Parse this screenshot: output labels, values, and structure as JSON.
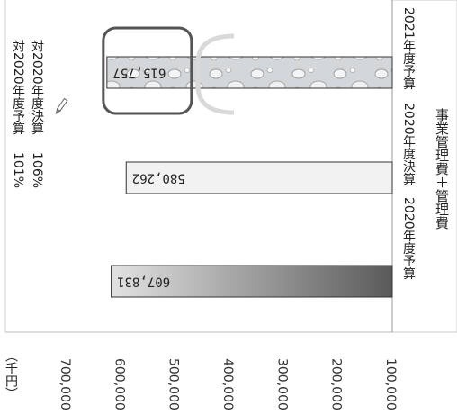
{
  "chart_data": {
    "type": "bar",
    "orientation": "horizontal",
    "unit_label": "（千円）",
    "categories": [
      "2020年度予算",
      "2020年度決算",
      "2021年度予算"
    ],
    "values": [
      607831,
      580262,
      615757
    ],
    "value_labels": [
      "607,831",
      "580,262",
      "615,757"
    ],
    "value_axis": {
      "min": 100000,
      "max": 700000,
      "ticks": [
        "100,000",
        "200,000",
        "300,000",
        "400,000",
        "500,000",
        "600,000",
        "700,000"
      ]
    },
    "category_axis_title": "事業管理費＋管理費",
    "annotation": {
      "lines": [
        {
          "label": "対2020年度予算",
          "value": "101%"
        },
        {
          "label": "対2020年度決算",
          "value": "106%"
        }
      ],
      "icon": "pencil-icon"
    },
    "highlight_category": "2021年度予算",
    "colors": {
      "bar1": "#5e5e5e",
      "bar2": "#f2f2f2",
      "bar3": "#d3d6d8",
      "outline": "#333333",
      "highlight": "#555555"
    }
  }
}
